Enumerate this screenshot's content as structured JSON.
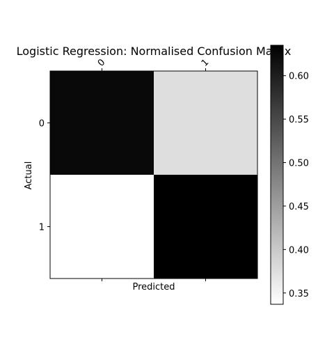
{
  "chart_data": {
    "type": "heatmap",
    "title": "Logistic Regression: Normalised Confusion Matrix",
    "xlabel": "Predicted",
    "ylabel": "Actual",
    "x_categories": [
      "0",
      "1"
    ],
    "y_categories": [
      "0",
      "1"
    ],
    "values": [
      [
        0.624,
        0.376
      ],
      [
        0.337,
        0.635
      ]
    ],
    "colormap": "gray_r",
    "colorbar": {
      "range": [
        0.337,
        0.635
      ],
      "ticks": [
        0.35,
        0.4,
        0.45,
        0.5,
        0.55,
        0.6
      ],
      "tick_labels": [
        "0.35",
        "0.40",
        "0.45",
        "0.50",
        "0.55",
        "0.60"
      ]
    },
    "x_ticks_position": "top",
    "grid": false
  }
}
